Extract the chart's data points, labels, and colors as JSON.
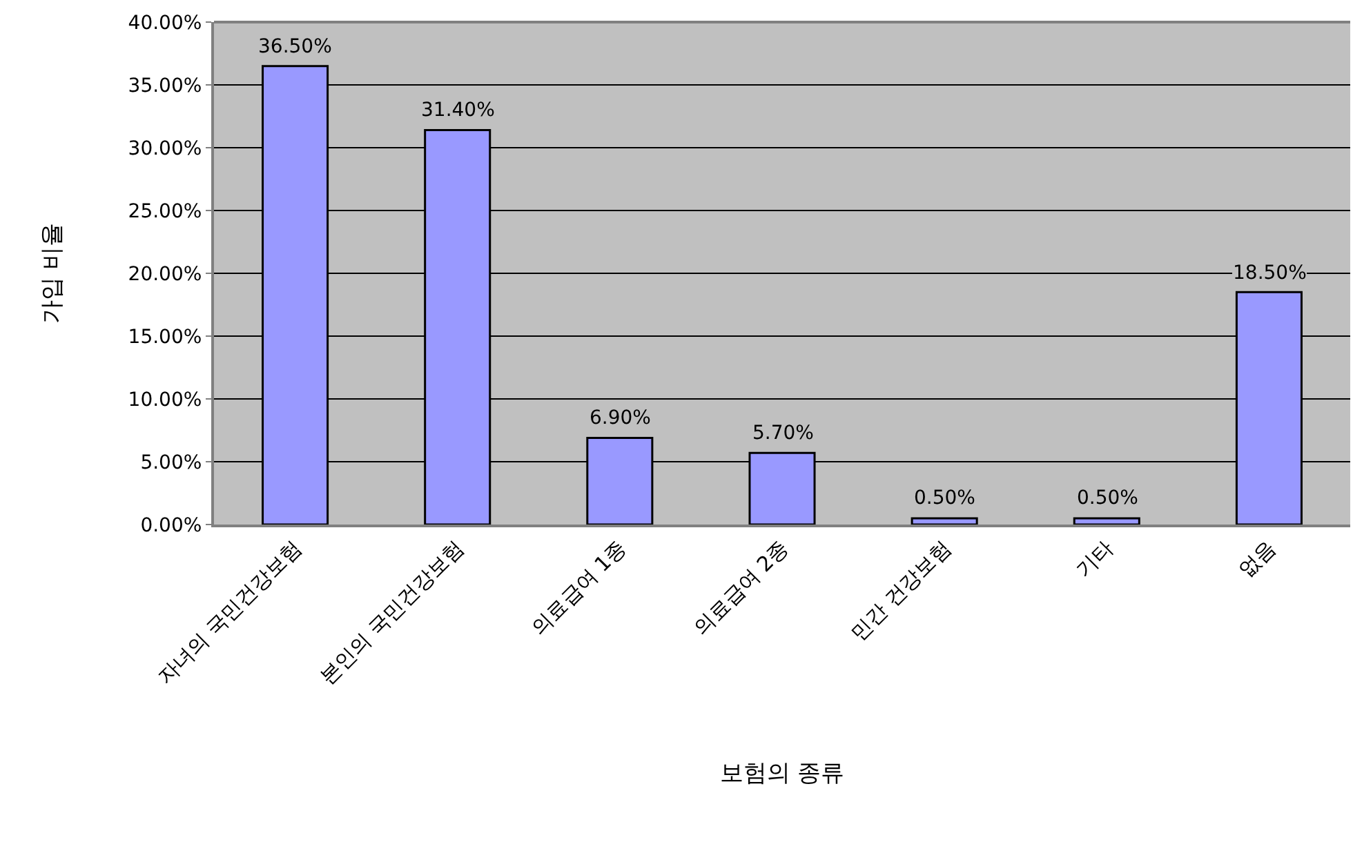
{
  "chart_data": {
    "type": "bar",
    "xlabel": "보험의 종류",
    "ylabel": "가입 비율",
    "categories": [
      "자녀의 국민건강보험",
      "본인의 국민건강보험",
      "의료급여 1종",
      "의료급여 2종",
      "민간 건강보험",
      "기타",
      "없음"
    ],
    "values": [
      36.5,
      31.4,
      6.9,
      5.7,
      0.5,
      0.5,
      18.5
    ],
    "value_labels": [
      "36.50%",
      "31.40%",
      "6.90%",
      "5.70%",
      "0.50%",
      "0.50%",
      "18.50%"
    ],
    "color": "#9999ff",
    "ylim": [
      0,
      40
    ],
    "yticks": [
      {
        "value": 0,
        "label": "0.00%"
      },
      {
        "value": 5,
        "label": "5.00%"
      },
      {
        "value": 10,
        "label": "10.00%"
      },
      {
        "value": 15,
        "label": "15.00%"
      },
      {
        "value": 20,
        "label": "20.00%"
      },
      {
        "value": 25,
        "label": "25.00%"
      },
      {
        "value": 30,
        "label": "30.00%"
      },
      {
        "value": 35,
        "label": "35.00%"
      },
      {
        "value": 40,
        "label": "40.00%"
      }
    ],
    "grid": "y"
  }
}
